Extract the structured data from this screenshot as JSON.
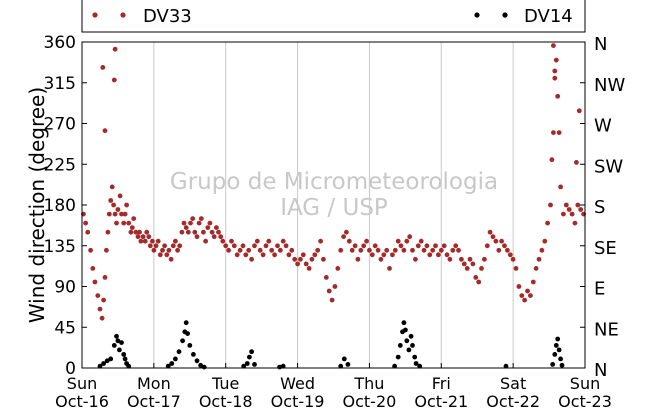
{
  "chart_data": {
    "type": "scatter",
    "ylabel": "Wind direction (degree)",
    "ylim": [
      0,
      360
    ],
    "yticks": [
      0,
      45,
      90,
      135,
      180,
      225,
      270,
      315,
      360
    ],
    "ytick_labels": [
      "0",
      "45",
      "90",
      "135",
      "180",
      "225",
      "270",
      "315",
      "360"
    ],
    "right_ticks": [
      0,
      45,
      90,
      135,
      180,
      225,
      270,
      315,
      360
    ],
    "right_tick_labels": [
      "N",
      "NE",
      "E",
      "SE",
      "S",
      "SW",
      "W",
      "NW",
      "N"
    ],
    "x_days": [
      "Sun",
      "Mon",
      "Tue",
      "Wed",
      "Thu",
      "Fri",
      "Sat",
      "Sun"
    ],
    "x_dates": [
      "Oct-16",
      "Oct-17",
      "Oct-18",
      "Oct-19",
      "Oct-20",
      "Oct-21",
      "Oct-22",
      "Oct-23"
    ],
    "xlim_days": [
      0,
      7
    ],
    "grid": "vertical",
    "legend_position": "top",
    "watermark": [
      "Grupo de Micrometeorologia",
      "IAG / USP"
    ],
    "series": [
      {
        "name": "DV33",
        "color": "#a52a2a",
        "points": [
          [
            0.02,
            170
          ],
          [
            0.05,
            160
          ],
          [
            0.08,
            150
          ],
          [
            0.12,
            130
          ],
          [
            0.15,
            110
          ],
          [
            0.18,
            95
          ],
          [
            0.22,
            80
          ],
          [
            0.25,
            65
          ],
          [
            0.28,
            55
          ],
          [
            0.3,
            75
          ],
          [
            0.32,
            100
          ],
          [
            0.34,
            130
          ],
          [
            0.36,
            150
          ],
          [
            0.38,
            170
          ],
          [
            0.4,
            185
          ],
          [
            0.42,
            200
          ],
          [
            0.44,
            180
          ],
          [
            0.46,
            170
          ],
          [
            0.48,
            160
          ],
          [
            0.5,
            175
          ],
          [
            0.53,
            190
          ],
          [
            0.55,
            170
          ],
          [
            0.58,
            160
          ],
          [
            0.6,
            170
          ],
          [
            0.62,
            180
          ],
          [
            0.65,
            160
          ],
          [
            0.68,
            150
          ],
          [
            0.7,
            155
          ],
          [
            0.72,
            165
          ],
          [
            0.75,
            150
          ],
          [
            0.78,
            145
          ],
          [
            0.8,
            150
          ],
          [
            0.82,
            140
          ],
          [
            0.85,
            145
          ],
          [
            0.88,
            140
          ],
          [
            0.9,
            150
          ],
          [
            0.93,
            145
          ],
          [
            0.95,
            135
          ],
          [
            0.98,
            140
          ],
          [
            1.0,
            130
          ],
          [
            1.03,
            135
          ],
          [
            1.06,
            140
          ],
          [
            1.09,
            125
          ],
          [
            1.12,
            130
          ],
          [
            1.15,
            135
          ],
          [
            1.18,
            125
          ],
          [
            1.21,
            130
          ],
          [
            1.24,
            120
          ],
          [
            1.27,
            135
          ],
          [
            1.3,
            140
          ],
          [
            1.33,
            130
          ],
          [
            1.36,
            135
          ],
          [
            1.39,
            150
          ],
          [
            1.42,
            160
          ],
          [
            1.45,
            155
          ],
          [
            1.48,
            150
          ],
          [
            1.51,
            160
          ],
          [
            1.54,
            165
          ],
          [
            1.57,
            150
          ],
          [
            1.6,
            145
          ],
          [
            1.63,
            160
          ],
          [
            1.66,
            165
          ],
          [
            1.69,
            150
          ],
          [
            1.72,
            140
          ],
          [
            1.75,
            155
          ],
          [
            1.78,
            160
          ],
          [
            1.81,
            150
          ],
          [
            1.84,
            145
          ],
          [
            1.87,
            155
          ],
          [
            1.9,
            150
          ],
          [
            1.93,
            145
          ],
          [
            1.96,
            140
          ],
          [
            2.0,
            135
          ],
          [
            2.04,
            130
          ],
          [
            2.08,
            140
          ],
          [
            2.12,
            135
          ],
          [
            2.16,
            125
          ],
          [
            2.2,
            130
          ],
          [
            2.24,
            135
          ],
          [
            2.28,
            125
          ],
          [
            2.32,
            130
          ],
          [
            2.36,
            120
          ],
          [
            2.4,
            135
          ],
          [
            2.44,
            140
          ],
          [
            2.48,
            130
          ],
          [
            2.52,
            125
          ],
          [
            2.56,
            135
          ],
          [
            2.6,
            140
          ],
          [
            2.64,
            130
          ],
          [
            2.68,
            125
          ],
          [
            2.72,
            135
          ],
          [
            2.76,
            130
          ],
          [
            2.8,
            140
          ],
          [
            2.84,
            135
          ],
          [
            2.88,
            125
          ],
          [
            2.92,
            130
          ],
          [
            2.96,
            120
          ],
          [
            3.0,
            115
          ],
          [
            3.04,
            120
          ],
          [
            3.08,
            125
          ],
          [
            3.12,
            115
          ],
          [
            3.16,
            110
          ],
          [
            3.2,
            120
          ],
          [
            3.24,
            125
          ],
          [
            3.28,
            130
          ],
          [
            3.32,
            140
          ],
          [
            3.36,
            120
          ],
          [
            3.4,
            100
          ],
          [
            3.44,
            85
          ],
          [
            3.48,
            75
          ],
          [
            3.52,
            90
          ],
          [
            3.56,
            110
          ],
          [
            3.6,
            130
          ],
          [
            3.64,
            145
          ],
          [
            3.68,
            150
          ],
          [
            3.72,
            140
          ],
          [
            3.76,
            130
          ],
          [
            3.8,
            135
          ],
          [
            3.84,
            120
          ],
          [
            3.88,
            130
          ],
          [
            3.92,
            135
          ],
          [
            3.96,
            140
          ],
          [
            4.0,
            130
          ],
          [
            4.04,
            125
          ],
          [
            4.08,
            135
          ],
          [
            4.12,
            130
          ],
          [
            4.16,
            120
          ],
          [
            4.2,
            125
          ],
          [
            4.24,
            130
          ],
          [
            4.28,
            110
          ],
          [
            4.32,
            125
          ],
          [
            4.36,
            130
          ],
          [
            4.4,
            140
          ],
          [
            4.44,
            135
          ],
          [
            4.48,
            130
          ],
          [
            4.52,
            140
          ],
          [
            4.56,
            145
          ],
          [
            4.6,
            130
          ],
          [
            4.64,
            120
          ],
          [
            4.68,
            135
          ],
          [
            4.72,
            140
          ],
          [
            4.76,
            130
          ],
          [
            4.8,
            135
          ],
          [
            4.84,
            125
          ],
          [
            4.88,
            130
          ],
          [
            4.92,
            135
          ],
          [
            4.96,
            125
          ],
          [
            5.0,
            130
          ],
          [
            5.04,
            135
          ],
          [
            5.08,
            125
          ],
          [
            5.12,
            120
          ],
          [
            5.16,
            130
          ],
          [
            5.2,
            135
          ],
          [
            5.24,
            130
          ],
          [
            5.28,
            120
          ],
          [
            5.32,
            115
          ],
          [
            5.36,
            110
          ],
          [
            5.4,
            120
          ],
          [
            5.44,
            115
          ],
          [
            5.48,
            100
          ],
          [
            5.52,
            95
          ],
          [
            5.56,
            110
          ],
          [
            5.6,
            120
          ],
          [
            5.64,
            135
          ],
          [
            5.68,
            150
          ],
          [
            5.72,
            145
          ],
          [
            5.76,
            140
          ],
          [
            5.8,
            130
          ],
          [
            5.84,
            140
          ],
          [
            5.88,
            135
          ],
          [
            5.92,
            130
          ],
          [
            5.96,
            125
          ],
          [
            6.0,
            120
          ],
          [
            6.04,
            110
          ],
          [
            6.08,
            90
          ],
          [
            6.12,
            80
          ],
          [
            6.16,
            75
          ],
          [
            6.2,
            85
          ],
          [
            6.24,
            80
          ],
          [
            6.28,
            95
          ],
          [
            6.32,
            110
          ],
          [
            6.36,
            120
          ],
          [
            6.4,
            130
          ],
          [
            6.44,
            140
          ],
          [
            6.48,
            160
          ],
          [
            6.52,
            180
          ],
          [
            6.54,
            230
          ],
          [
            6.56,
            260
          ],
          [
            6.58,
            320
          ],
          [
            6.6,
            340
          ],
          [
            6.62,
            300
          ],
          [
            6.64,
            260
          ],
          [
            6.66,
            200
          ],
          [
            6.7,
            170
          ],
          [
            6.74,
            180
          ],
          [
            6.78,
            175
          ],
          [
            6.82,
            170
          ],
          [
            6.86,
            160
          ],
          [
            6.9,
            180
          ],
          [
            6.94,
            175
          ],
          [
            6.98,
            170
          ],
          [
            0.29,
            332
          ],
          [
            0.32,
            262
          ],
          [
            0.45,
            318
          ],
          [
            0.46,
            352
          ],
          [
            6.56,
            356
          ],
          [
            6.58,
            328
          ],
          [
            6.92,
            284
          ],
          [
            6.88,
            227
          ]
        ]
      },
      {
        "name": "DV14",
        "color": "#000000",
        "points": [
          [
            0.25,
            2
          ],
          [
            0.3,
            5
          ],
          [
            0.35,
            8
          ],
          [
            0.4,
            10
          ],
          [
            0.45,
            25
          ],
          [
            0.48,
            35
          ],
          [
            0.5,
            30
          ],
          [
            0.52,
            20
          ],
          [
            0.55,
            28
          ],
          [
            0.58,
            15
          ],
          [
            0.6,
            10
          ],
          [
            0.62,
            5
          ],
          [
            0.65,
            2
          ],
          [
            1.2,
            2
          ],
          [
            1.25,
            5
          ],
          [
            1.3,
            10
          ],
          [
            1.35,
            18
          ],
          [
            1.4,
            30
          ],
          [
            1.43,
            40
          ],
          [
            1.45,
            50
          ],
          [
            1.47,
            38
          ],
          [
            1.5,
            25
          ],
          [
            1.55,
            15
          ],
          [
            1.6,
            8
          ],
          [
            1.65,
            3
          ],
          [
            1.7,
            1
          ],
          [
            2.25,
            2
          ],
          [
            2.3,
            5
          ],
          [
            2.33,
            12
          ],
          [
            2.36,
            18
          ],
          [
            2.4,
            4
          ],
          [
            2.75,
            1
          ],
          [
            2.8,
            2
          ],
          [
            3.6,
            2
          ],
          [
            3.65,
            10
          ],
          [
            3.7,
            4
          ],
          [
            4.35,
            2
          ],
          [
            4.4,
            12
          ],
          [
            4.43,
            25
          ],
          [
            4.46,
            40
          ],
          [
            4.48,
            50
          ],
          [
            4.5,
            42
          ],
          [
            4.52,
            30
          ],
          [
            4.55,
            20
          ],
          [
            4.58,
            35
          ],
          [
            4.6,
            25
          ],
          [
            4.63,
            12
          ],
          [
            4.65,
            5
          ],
          [
            4.7,
            2
          ],
          [
            5.9,
            2
          ],
          [
            6.55,
            4
          ],
          [
            6.58,
            15
          ],
          [
            6.6,
            25
          ],
          [
            6.62,
            32
          ],
          [
            6.64,
            20
          ],
          [
            6.66,
            10
          ],
          [
            6.68,
            3
          ]
        ]
      }
    ]
  }
}
